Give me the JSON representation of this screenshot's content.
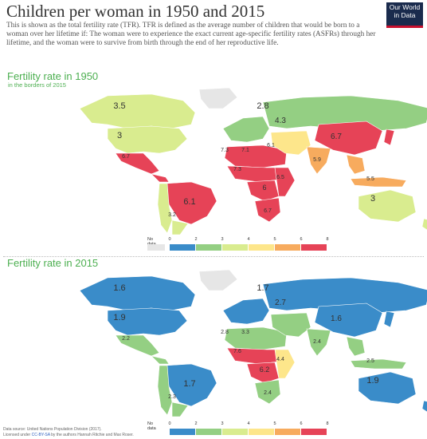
{
  "header": {
    "title": "Children per woman in 1950 and 2015",
    "subtitle": "This is shown as the total fertility rate (TFR). TFR is defined as the average number of children that would be born to a woman over her lifetime if: The woman were to experience the exact current age-specific fertility rates (ASFRs) through her lifetime, and the woman were to survive from birth through the end of her reproductive life.",
    "logo_line1": "Our World",
    "logo_line2": "in Data"
  },
  "colors": {
    "c0_2": "#3a8cc9",
    "c2_3": "#94cf83",
    "c3_4": "#d9ec8f",
    "c4_5": "#fde68b",
    "c5_6": "#f7ab5e",
    "c6_8": "#e64357",
    "no_data": "#e6e6e6",
    "title_green": "#4caf50"
  },
  "maps": [
    {
      "title": "Fertility rate in 1950",
      "subtitle": "in the borders of 2015",
      "labels": [
        {
          "region": "canada",
          "value": "3.5"
        },
        {
          "region": "usa",
          "value": "3"
        },
        {
          "region": "russia",
          "value": "2.8"
        },
        {
          "region": "middle-east",
          "value": "4.3"
        },
        {
          "region": "china",
          "value": "6.7"
        },
        {
          "region": "north-africa-1",
          "value": "7.3"
        },
        {
          "region": "north-africa-2",
          "value": "7.1"
        },
        {
          "region": "north-africa-3",
          "value": "6.1"
        },
        {
          "region": "sahel",
          "value": "7.3"
        },
        {
          "region": "central-africa",
          "value": "6"
        },
        {
          "region": "east-africa",
          "value": "6.5"
        },
        {
          "region": "southern-africa",
          "value": "6.7"
        },
        {
          "region": "brazil",
          "value": "6.1"
        },
        {
          "region": "argentina",
          "value": "3.2"
        },
        {
          "region": "india",
          "value": "5.9"
        },
        {
          "region": "australia",
          "value": "3"
        },
        {
          "region": "mexico",
          "value": "6.7"
        },
        {
          "region": "indonesia",
          "value": "5.5"
        }
      ]
    },
    {
      "title": "Fertility rate in 2015",
      "subtitle": "",
      "labels": [
        {
          "region": "canada",
          "value": "1.6"
        },
        {
          "region": "usa",
          "value": "1.9"
        },
        {
          "region": "russia",
          "value": "1.7"
        },
        {
          "region": "middle-east",
          "value": "2.7"
        },
        {
          "region": "china",
          "value": "1.6"
        },
        {
          "region": "north-africa-1",
          "value": "2.8"
        },
        {
          "region": "north-africa-2",
          "value": "3.3"
        },
        {
          "region": "sahel",
          "value": "7.6"
        },
        {
          "region": "central-africa",
          "value": "6.2"
        },
        {
          "region": "east-africa",
          "value": "4.4"
        },
        {
          "region": "southern-africa",
          "value": "2.4"
        },
        {
          "region": "brazil",
          "value": "1.7"
        },
        {
          "region": "argentina",
          "value": "2.3"
        },
        {
          "region": "india",
          "value": "2.4"
        },
        {
          "region": "australia",
          "value": "1.9"
        },
        {
          "region": "mexico",
          "value": "2.2"
        },
        {
          "region": "indonesia",
          "value": "2.5"
        }
      ]
    }
  ],
  "legend": {
    "no_data_label": "No data",
    "ticks": [
      "0",
      "2",
      "3",
      "4",
      "5",
      "6",
      "8"
    ]
  },
  "footer": {
    "source": "Data source: United Nations Population Division (2017).",
    "license_prefix": "Licensed under ",
    "license_link": "CC-BY-SA",
    "license_suffix": " by the authors Hannah Ritchie and Max Roser."
  }
}
